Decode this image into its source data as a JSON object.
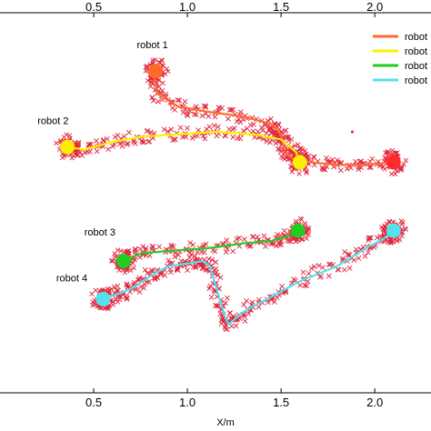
{
  "chart_data": {
    "type": "scatter",
    "title": "",
    "xlabel": "X/m",
    "ylabel": "",
    "xlim": [
      0.0,
      2.3
    ],
    "ylim": [
      -0.4,
      1.1
    ],
    "xticks": [
      0.5,
      1.0,
      1.5,
      2.0
    ],
    "xtick_labels": [
      "0.5",
      "1.0",
      "1.5",
      "2.0"
    ],
    "grid": false,
    "legend_position": "top-right",
    "legend_labels": [
      "robot",
      "robot",
      "robot",
      "robot"
    ],
    "series": [
      {
        "name": "robot 1",
        "color": "#ff6a2b",
        "line": [
          [
            0.82,
            0.86
          ],
          [
            0.84,
            0.78
          ],
          [
            0.95,
            0.73
          ],
          [
            1.1,
            0.71
          ],
          [
            1.3,
            0.69
          ],
          [
            1.45,
            0.66
          ],
          [
            1.5,
            0.62
          ],
          [
            1.52,
            0.55
          ],
          [
            1.57,
            0.52
          ],
          [
            1.65,
            0.51
          ],
          [
            1.8,
            0.5
          ],
          [
            1.95,
            0.5
          ],
          [
            2.1,
            0.51
          ]
        ],
        "start": [
          0.83,
          0.87
        ],
        "end": [
          2.1,
          0.51
        ],
        "start_color": "#ff6a2b",
        "end_color": "#ff2a2a"
      },
      {
        "name": "robot 2",
        "color": "#ffee00",
        "line": [
          [
            0.36,
            0.57
          ],
          [
            0.45,
            0.56
          ],
          [
            0.6,
            0.59
          ],
          [
            0.75,
            0.61
          ],
          [
            0.95,
            0.62
          ],
          [
            1.15,
            0.63
          ],
          [
            1.35,
            0.62
          ],
          [
            1.5,
            0.6
          ],
          [
            1.58,
            0.55
          ],
          [
            1.6,
            0.51
          ]
        ],
        "start": [
          0.36,
          0.57
        ],
        "end": [
          1.6,
          0.51
        ],
        "start_color": "#ffee00",
        "end_color": "#ffee00"
      },
      {
        "name": "robot 3",
        "color": "#22cc22",
        "line": [
          [
            0.66,
            0.12
          ],
          [
            0.75,
            0.15
          ],
          [
            0.9,
            0.16
          ],
          [
            1.1,
            0.17
          ],
          [
            1.3,
            0.19
          ],
          [
            1.45,
            0.2
          ],
          [
            1.55,
            0.22
          ],
          [
            1.59,
            0.23
          ]
        ],
        "start": [
          0.66,
          0.12
        ],
        "end": [
          1.59,
          0.24
        ],
        "start_color": "#22cc22",
        "end_color": "#22cc22"
      },
      {
        "name": "robot 4",
        "color": "#55e0ee",
        "line": [
          [
            0.55,
            -0.03
          ],
          [
            0.63,
            -0.01
          ],
          [
            0.7,
            0.01
          ],
          [
            0.8,
            0.06
          ],
          [
            0.9,
            0.1
          ],
          [
            1.0,
            0.11
          ],
          [
            1.08,
            0.12
          ],
          [
            1.12,
            0.1
          ],
          [
            1.16,
            0.0
          ],
          [
            1.2,
            -0.1
          ],
          [
            1.22,
            -0.13
          ],
          [
            1.3,
            -0.08
          ],
          [
            1.45,
            -0.02
          ],
          [
            1.6,
            0.04
          ],
          [
            1.8,
            0.1
          ],
          [
            1.95,
            0.17
          ],
          [
            2.05,
            0.21
          ],
          [
            2.1,
            0.24
          ]
        ],
        "start": [
          0.55,
          -0.03
        ],
        "end": [
          2.1,
          0.24
        ],
        "start_color": "#55e0ee",
        "end_color": "#55e0ee"
      }
    ],
    "robot_labels": [
      {
        "text": "robot 1",
        "x": 0.73,
        "y": 0.96
      },
      {
        "text": "robot 2",
        "x": 0.2,
        "y": 0.66
      },
      {
        "text": "robot 3",
        "x": 0.45,
        "y": 0.22
      },
      {
        "text": "robot 4",
        "x": 0.3,
        "y": 0.04
      }
    ],
    "marker_color": "#e0243c"
  }
}
